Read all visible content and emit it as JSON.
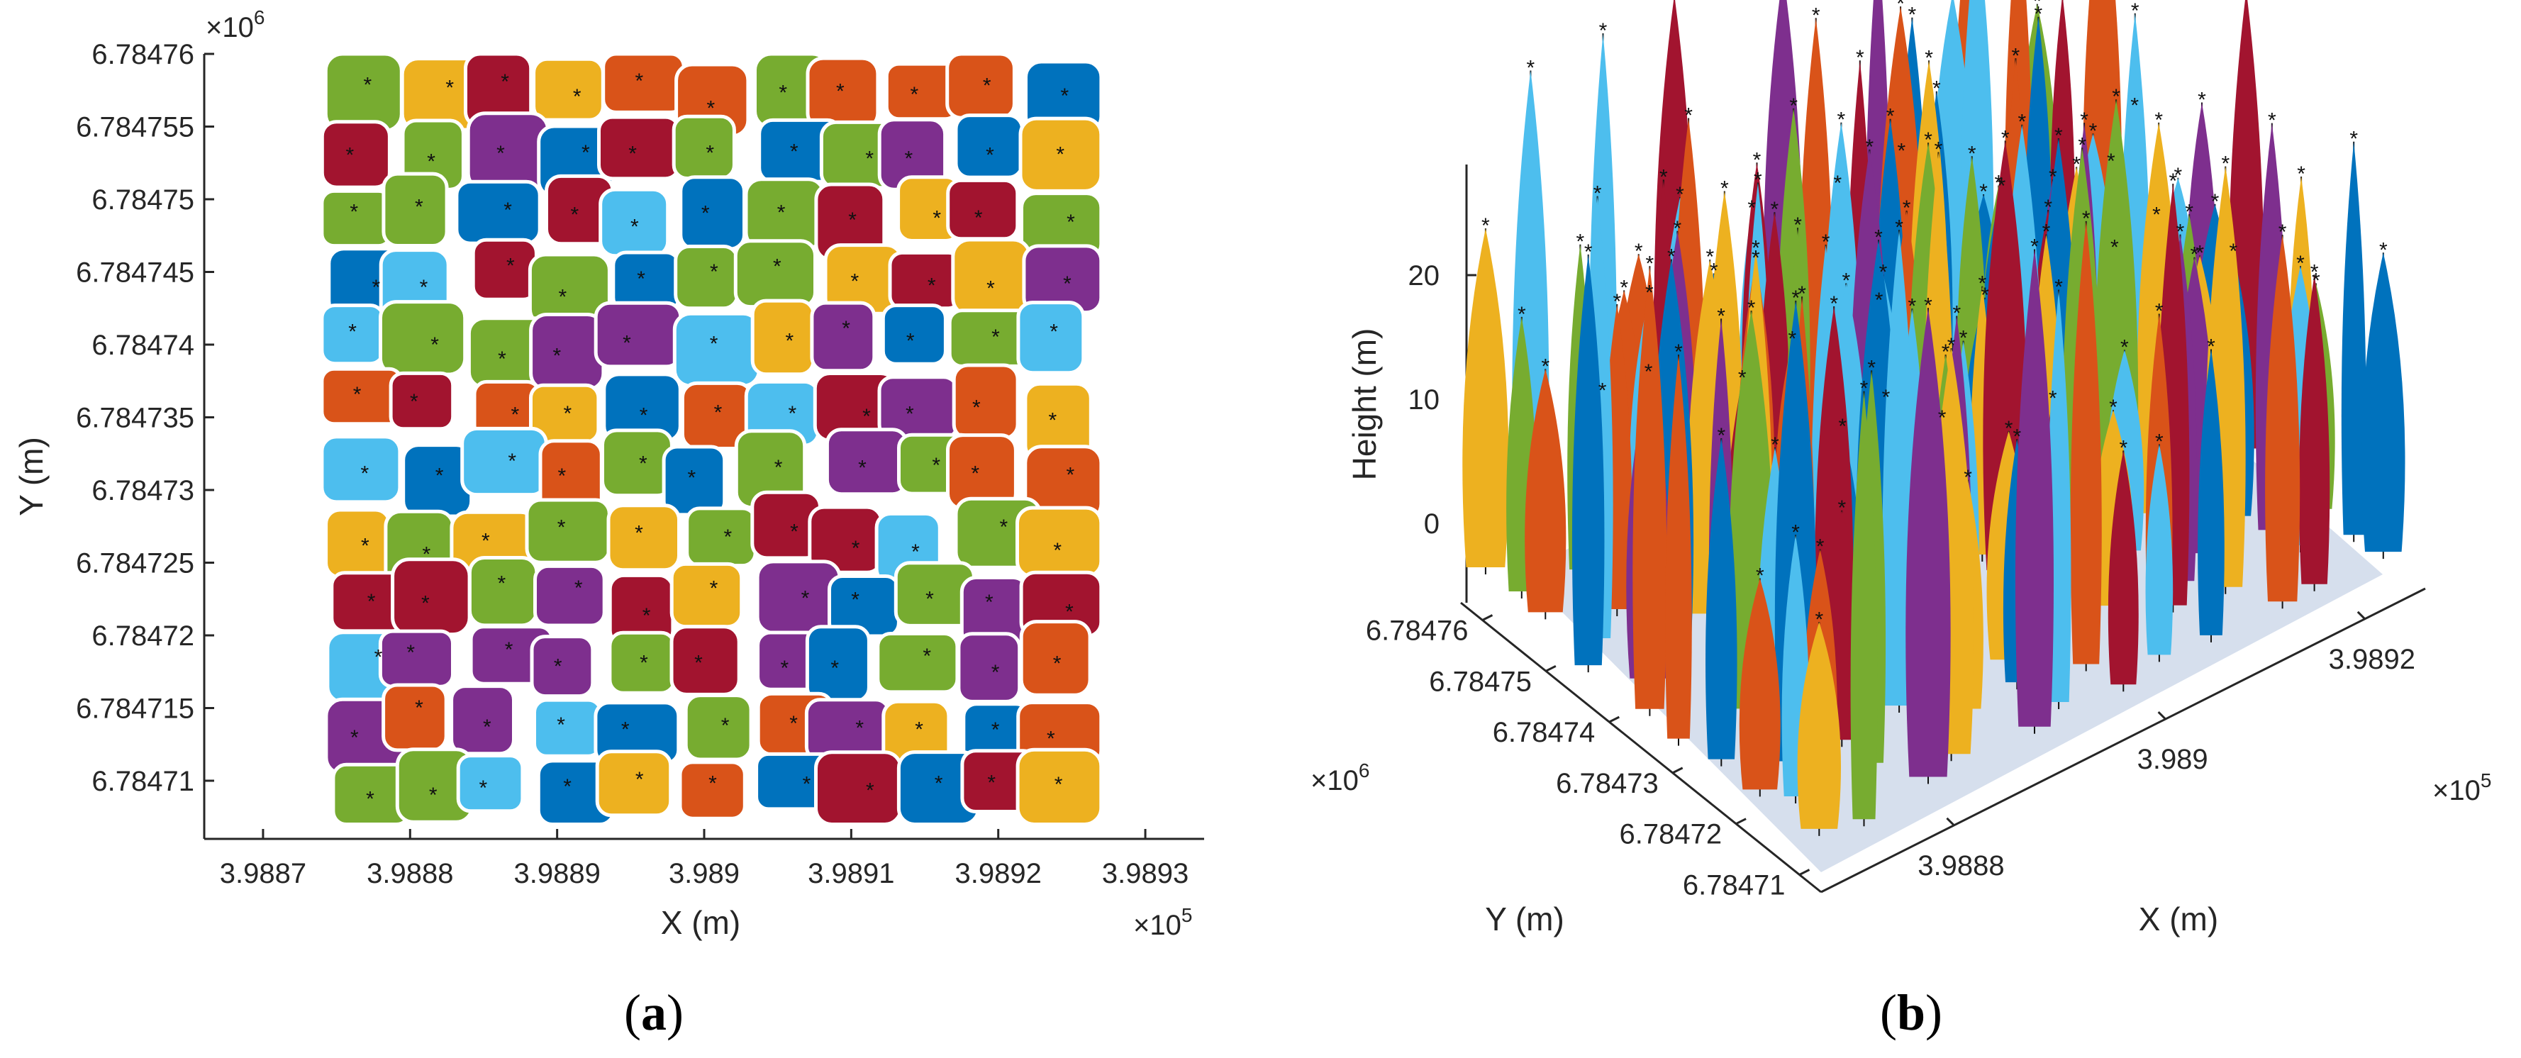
{
  "chart_data": [
    {
      "type": "scatter",
      "panel_label": "a",
      "title": "",
      "xlabel": "X (m)",
      "ylabel": "Y (m)",
      "x_exponent": "×10^5",
      "y_exponent": "×10^6",
      "x_exp_base": "×10",
      "x_exp_pow": "5",
      "y_exp_base": "×10",
      "y_exp_pow": "6",
      "xlim": [
        3.98866,
        3.98934
      ],
      "ylim": [
        6.784706,
        6.78476
      ],
      "xticks": [
        3.9887,
        3.9888,
        3.9889,
        3.989,
        3.9891,
        3.9892,
        3.9893
      ],
      "xtick_labels": [
        "3.9887",
        "3.9888",
        "3.9889",
        "3.989",
        "3.9891",
        "3.9892",
        "3.9893"
      ],
      "yticks": [
        6.78471,
        6.784715,
        6.78472,
        6.784725,
        6.78473,
        6.784735,
        6.78474,
        6.784745,
        6.78475,
        6.784755,
        6.78476
      ],
      "ytick_labels": [
        "6.78471",
        "6.784715",
        "6.78472",
        "6.784725",
        "6.78473",
        "6.784735",
        "6.78474",
        "6.784745",
        "6.78475",
        "6.784755",
        "6.78476"
      ],
      "plot_extent_x": [
        3.98874,
        3.98927
      ],
      "plot_extent_y": [
        6.784707,
        6.78476
      ],
      "description_series": "Point cloud segmented into individual tree crowns, each crown drawn in one color with its detected treetop marked by an asterisk",
      "marker": "*"
    },
    {
      "type": "scatter3d",
      "panel_label": "b",
      "title": "",
      "xlabel": "X (m)",
      "ylabel": "Y (m)",
      "zlabel": "Height (m)",
      "x_exponent": "×10^5",
      "y_exponent": "×10^6",
      "x_exp_base": "×10",
      "x_exp_pow": "5",
      "y_exp_base": "×10",
      "y_exp_pow": "6",
      "xticks": [
        3.9888,
        3.989,
        3.9892
      ],
      "xtick_labels": [
        "3.9888",
        "3.989",
        "3.9892"
      ],
      "yticks": [
        6.78471,
        6.78472,
        6.78473,
        6.78474,
        6.78475,
        6.78476
      ],
      "ytick_labels": [
        "6.78471",
        "6.78472",
        "6.78473",
        "6.78474",
        "6.78475",
        "6.78476"
      ],
      "zticks": [
        0,
        10,
        20
      ],
      "ztick_labels": [
        "0",
        "10",
        "20"
      ],
      "zlim": [
        -3,
        28
      ],
      "marker": "*"
    }
  ],
  "caption_a": "(a)",
  "caption_b": "(b)",
  "colors": [
    "#0072BD",
    "#D95319",
    "#EDB120",
    "#7E2F8E",
    "#77AC30",
    "#4DBEEE",
    "#A2142F"
  ]
}
